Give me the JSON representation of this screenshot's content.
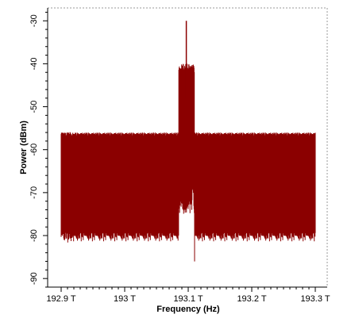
{
  "chart_data": {
    "type": "line",
    "title": "",
    "xlabel": "Frequency (Hz)",
    "ylabel": "Power (dBm)",
    "xlim": [
      192.9,
      193.3
    ],
    "ylim": [
      -92,
      -27
    ],
    "x_unit": "THz",
    "x_tick_labels": [
      "192.9 T",
      "193 T",
      "193.1 T",
      "193.2 T",
      "193.3 T"
    ],
    "x_ticks": [
      192.9,
      193.0,
      193.1,
      193.2,
      193.3
    ],
    "y_ticks": [
      -90,
      -80,
      -70,
      -60,
      -50,
      -40,
      -30
    ],
    "y_tick_labels": [
      "-90",
      "-80",
      "-70",
      "-60",
      "-50",
      "-40",
      "-30"
    ],
    "grid": false,
    "legend": "none",
    "series": [
      {
        "color": "#8b0000",
        "noise_floor": {
          "x_range": [
            192.9,
            193.3
          ],
          "upper_envelope": [
            -57,
            -56
          ],
          "lower_envelope": [
            -78,
            -80
          ],
          "occasional_peaks": -54,
          "occasional_dips": -90
        },
        "signal_band": {
          "x_range": [
            193.085,
            193.11
          ],
          "upper_envelope": [
            -42,
            -40
          ],
          "lower_envelope": [
            -68,
            -75
          ],
          "peak": {
            "x": 193.097,
            "y": -30
          }
        }
      }
    ]
  }
}
